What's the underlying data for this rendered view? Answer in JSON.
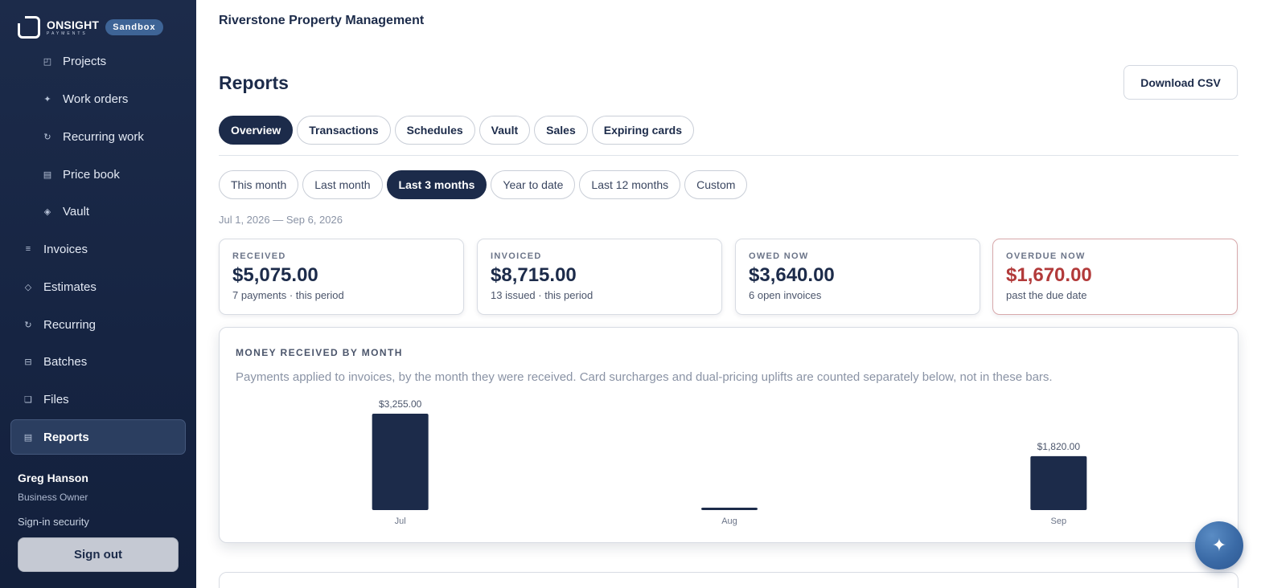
{
  "brand": {
    "name": "ONSIGHT",
    "sub": "PAYMENTS",
    "env_badge": "Sandbox"
  },
  "sidebar": {
    "sub_items": [
      {
        "label": "Projects",
        "icon": "projects-icon",
        "glyph": "◰"
      },
      {
        "label": "Work orders",
        "icon": "sparkle-icon",
        "glyph": "✦"
      },
      {
        "label": "Recurring work",
        "icon": "refresh-icon",
        "glyph": "↻"
      },
      {
        "label": "Price book",
        "icon": "book-icon",
        "glyph": "▤"
      },
      {
        "label": "Vault",
        "icon": "diamond-icon",
        "glyph": "◈"
      }
    ],
    "items": [
      {
        "label": "Invoices",
        "icon": "invoices-icon",
        "glyph": "≡"
      },
      {
        "label": "Estimates",
        "icon": "estimates-icon",
        "glyph": "◇"
      },
      {
        "label": "Recurring",
        "icon": "recurring-icon",
        "glyph": "↻"
      },
      {
        "label": "Batches",
        "icon": "batches-icon",
        "glyph": "⊟"
      },
      {
        "label": "Files",
        "icon": "files-icon",
        "glyph": "❏"
      },
      {
        "label": "Reports",
        "icon": "reports-icon",
        "glyph": "▤"
      }
    ],
    "user": {
      "name": "Greg Hanson",
      "role": "Business Owner"
    },
    "signin_security": "Sign-in security",
    "signout_label": "Sign out"
  },
  "header": {
    "org_name": "Riverstone Property Management"
  },
  "page": {
    "title": "Reports",
    "download_label": "Download CSV"
  },
  "tabs": [
    "Overview",
    "Transactions",
    "Schedules",
    "Vault",
    "Sales",
    "Expiring cards"
  ],
  "active_tab": "Overview",
  "ranges": [
    "This month",
    "Last month",
    "Last 3 months",
    "Year to date",
    "Last 12 months",
    "Custom"
  ],
  "active_range": "Last 3 months",
  "date_range": "Jul 1, 2026 — Sep 6, 2026",
  "stats": [
    {
      "label": "RECEIVED",
      "value": "$5,075.00",
      "note": "7 payments · this period"
    },
    {
      "label": "INVOICED",
      "value": "$8,715.00",
      "note": "13 issued · this period"
    },
    {
      "label": "OWED NOW",
      "value": "$3,640.00",
      "note": "6 open invoices"
    },
    {
      "label": "OVERDUE NOW",
      "value": "$1,670.00",
      "note": "past the due date"
    }
  ],
  "chart": {
    "title": "MONEY RECEIVED BY MONTH",
    "description": "Payments applied to invoices, by the month they were received. Card surcharges and dual-pricing uplifts are counted separately below, not in these bars."
  },
  "chart_data": {
    "type": "bar",
    "categories": [
      "Jul",
      "Aug",
      "Sep"
    ],
    "values": [
      3255,
      0,
      1820
    ],
    "data_labels": [
      "$3,255.00",
      "",
      "$1,820.00"
    ],
    "title": "MONEY RECEIVED BY MONTH",
    "xlabel": "",
    "ylabel": "",
    "ylim": [
      0,
      3255
    ],
    "grid": false,
    "bar_color": "#1c2b4a"
  },
  "colors": {
    "navy": "#1c2b4a",
    "overdue_red": "#b23a3a",
    "accent_blue": "#3e6496"
  },
  "fab_icon": "sparkle-icon"
}
